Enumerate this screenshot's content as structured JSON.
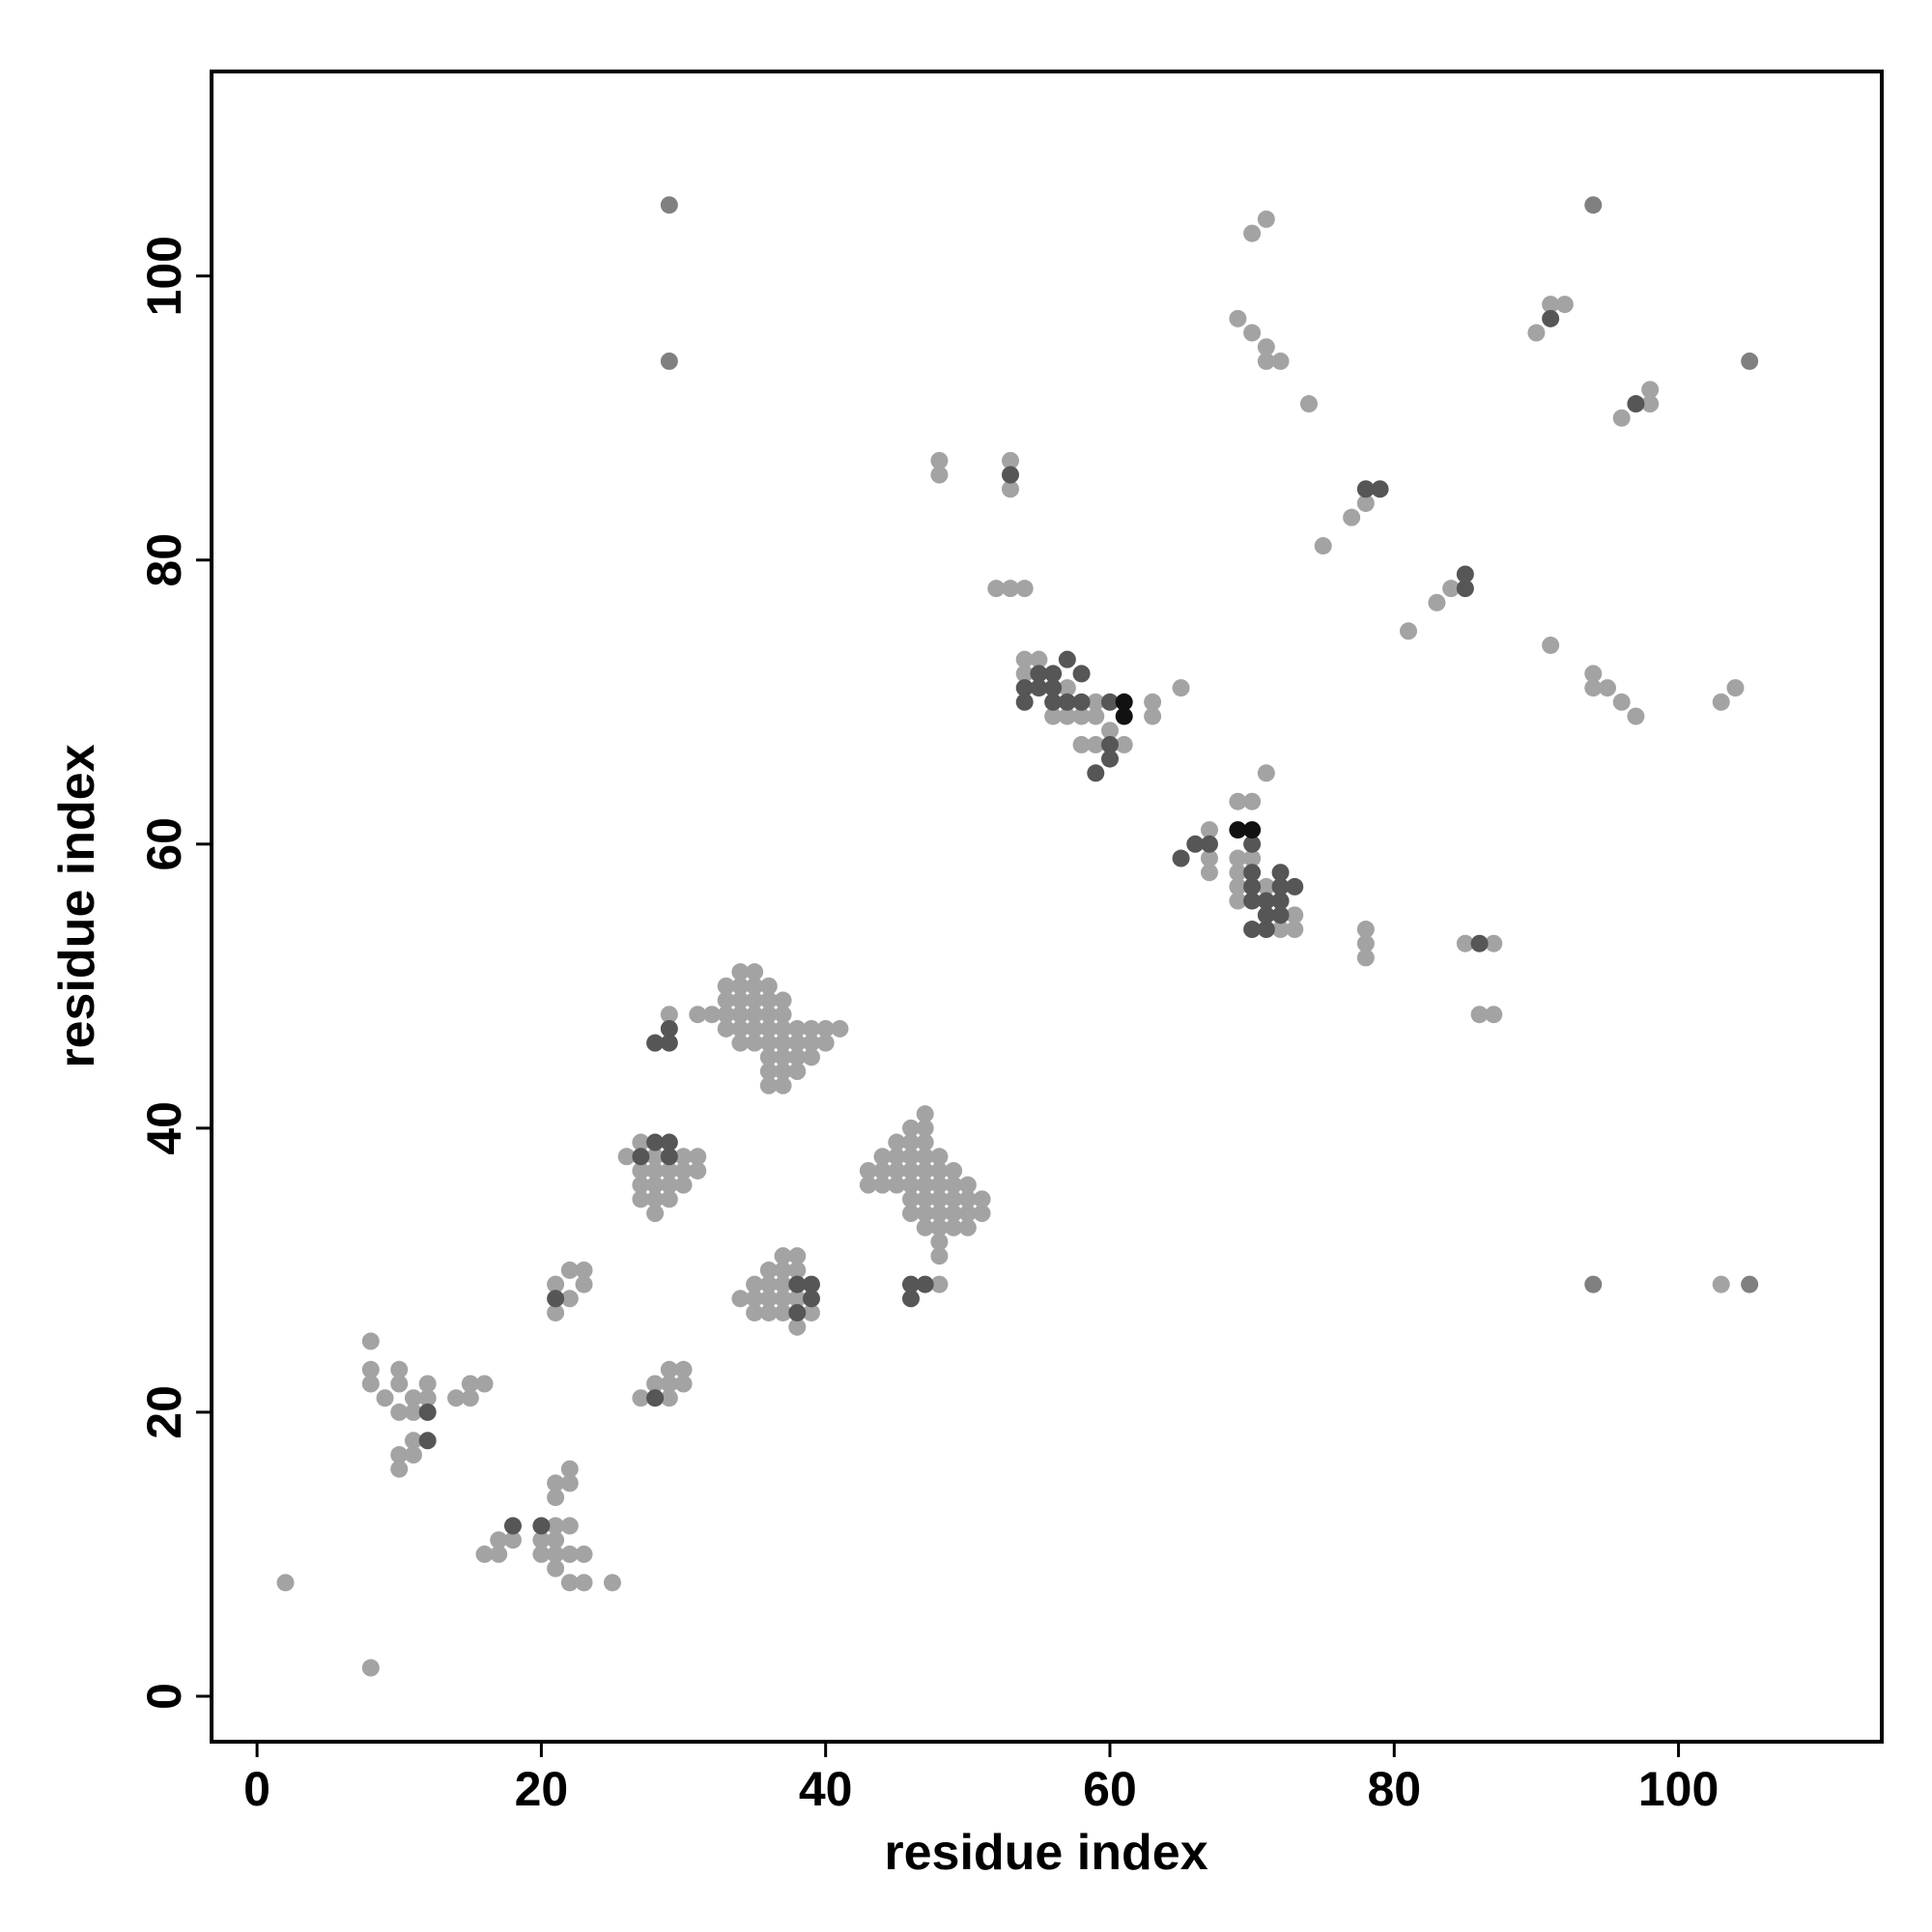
{
  "chart_data": {
    "type": "scatter",
    "xlabel": "residue index",
    "ylabel": "residue index",
    "xlim": [
      -3.2,
      114.3
    ],
    "ylim": [
      -3.2,
      114.4
    ],
    "xticks": [
      0,
      20,
      40,
      60,
      80,
      100
    ],
    "yticks": [
      0,
      20,
      40,
      60,
      80,
      100
    ],
    "series": [
      {
        "color": "#a3a3a3",
        "x": [
          2,
          8,
          8,
          8,
          8,
          9,
          10,
          10,
          10,
          11,
          11,
          12,
          12,
          11,
          10,
          11,
          10,
          14,
          15,
          15,
          16,
          16,
          17,
          17,
          18,
          20,
          20,
          21,
          21,
          21,
          21,
          22,
          22,
          23,
          22,
          23,
          25,
          21,
          21,
          22,
          22,
          21,
          21,
          22,
          22,
          23,
          23,
          27,
          28,
          29,
          29,
          29,
          30,
          30,
          26,
          27,
          27,
          27,
          27,
          28,
          28,
          28,
          28,
          28,
          29,
          29,
          29,
          30,
          30,
          30,
          31,
          31,
          29,
          31,
          32,
          33,
          33,
          33,
          33,
          34,
          34,
          34,
          34,
          34,
          34,
          35,
          35,
          35,
          35,
          35,
          35,
          36,
          36,
          36,
          36,
          36,
          36,
          36,
          36,
          37,
          37,
          37,
          37,
          37,
          37,
          37,
          38,
          38,
          38,
          38,
          39,
          39,
          39,
          40,
          40,
          41,
          34,
          35,
          35,
          35,
          36,
          36,
          36,
          36,
          37,
          37,
          37,
          37,
          37,
          38,
          38,
          38,
          38,
          39,
          43,
          43,
          44,
          44,
          44,
          45,
          45,
          45,
          45,
          46,
          46,
          46,
          46,
          46,
          46,
          46,
          47,
          47,
          47,
          47,
          47,
          47,
          47,
          47,
          47,
          48,
          48,
          48,
          48,
          48,
          48,
          48,
          48,
          49,
          49,
          49,
          49,
          49,
          50,
          50,
          50,
          50,
          51,
          51,
          48,
          48,
          48,
          53,
          53,
          52,
          53,
          54,
          54,
          54,
          55,
          56,
          57,
          57,
          58,
          58,
          59,
          59,
          59,
          60,
          61,
          63,
          63,
          65,
          67,
          67,
          67,
          69,
          69,
          69,
          69,
          69,
          70,
          70,
          71,
          71,
          72,
          73,
          73,
          69,
          70,
          70,
          71,
          71,
          71,
          72,
          74,
          75,
          77,
          78,
          78,
          78,
          78,
          81,
          83,
          84,
          85,
          86,
          87,
          87,
          90,
          91,
          92,
          91,
          94,
          94,
          95,
          96,
          97,
          96,
          98,
          98,
          103,
          104,
          103
        ],
        "y": [
          8,
          2,
          25,
          23,
          22,
          21,
          23,
          22,
          20,
          21,
          20,
          22,
          21,
          18,
          17,
          17,
          16,
          21,
          22,
          21,
          22,
          10,
          10,
          11,
          11,
          11,
          10,
          12,
          11,
          10,
          9,
          12,
          10,
          10,
          8,
          8,
          8,
          15,
          14,
          16,
          15,
          29,
          27,
          30,
          28,
          30,
          29,
          21,
          22,
          23,
          22,
          21,
          23,
          22,
          38,
          39,
          37,
          36,
          35,
          38,
          37,
          36,
          35,
          34,
          37,
          36,
          35,
          38,
          37,
          36,
          38,
          37,
          48,
          48,
          48,
          50,
          49,
          48,
          47,
          51,
          50,
          49,
          48,
          47,
          46,
          51,
          50,
          49,
          48,
          47,
          46,
          50,
          49,
          48,
          47,
          46,
          45,
          44,
          43,
          49,
          48,
          47,
          46,
          45,
          44,
          43,
          47,
          46,
          45,
          44,
          47,
          46,
          45,
          47,
          46,
          47,
          28,
          29,
          28,
          27,
          30,
          29,
          28,
          27,
          31,
          30,
          29,
          28,
          27,
          31,
          30,
          28,
          26,
          27,
          37,
          36,
          38,
          37,
          36,
          39,
          38,
          37,
          36,
          40,
          39,
          38,
          37,
          36,
          35,
          34,
          41,
          40,
          39,
          38,
          37,
          36,
          35,
          34,
          33,
          38,
          37,
          36,
          35,
          34,
          33,
          32,
          31,
          37,
          36,
          35,
          34,
          33,
          36,
          35,
          34,
          33,
          35,
          34,
          29,
          87,
          86,
          87,
          85,
          78,
          78,
          78,
          73,
          72,
          73,
          69,
          71,
          69,
          69,
          67,
          70,
          69,
          67,
          68,
          67,
          70,
          69,
          71,
          61,
          59,
          58,
          63,
          59,
          58,
          57,
          56,
          63,
          59,
          65,
          57,
          54,
          55,
          54,
          97,
          103,
          96,
          104,
          95,
          94,
          94,
          91,
          81,
          83,
          84,
          54,
          53,
          52,
          75,
          77,
          78,
          53,
          48,
          53,
          48,
          96,
          98,
          98,
          74,
          72,
          71,
          71,
          70,
          69,
          90,
          92,
          91,
          70,
          71,
          29
        ]
      },
      {
        "color": "#808080",
        "x": [
          29,
          29,
          94,
          105,
          94,
          105
        ],
        "y": [
          105,
          94,
          105,
          94,
          29,
          29
        ]
      },
      {
        "color": "#565656",
        "x": [
          12,
          12,
          18,
          20,
          21,
          28,
          27,
          28,
          29,
          29,
          28,
          29,
          29,
          38,
          39,
          38,
          39,
          46,
          47,
          46,
          53,
          54,
          54,
          55,
          55,
          56,
          56,
          56,
          57,
          57,
          58,
          58,
          60,
          60,
          60,
          59,
          65,
          66,
          67,
          70,
          70,
          70,
          70,
          71,
          71,
          71,
          70,
          72,
          72,
          72,
          72,
          73,
          78,
          79,
          85,
          85,
          86,
          91,
          97
        ],
        "y": [
          20,
          18,
          12,
          12,
          28,
          21,
          38,
          39,
          39,
          38,
          46,
          47,
          46,
          29,
          29,
          27,
          28,
          29,
          29,
          28,
          86,
          71,
          70,
          72,
          71,
          72,
          71,
          70,
          73,
          70,
          72,
          70,
          70,
          67,
          66,
          65,
          59,
          60,
          60,
          60,
          58,
          57,
          56,
          56,
          55,
          54,
          54,
          58,
          57,
          56,
          55,
          57,
          85,
          85,
          79,
          78,
          53,
          97,
          91
        ]
      },
      {
        "color": "#111111",
        "x": [
          61,
          61,
          69,
          70
        ],
        "y": [
          70,
          69,
          61,
          61
        ]
      }
    ]
  }
}
